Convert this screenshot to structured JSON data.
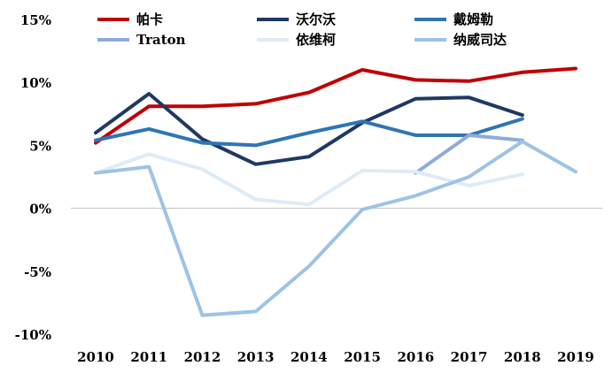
{
  "chart_data": {
    "type": "line",
    "title": "",
    "xlabel": "",
    "ylabel": "",
    "x": [
      "2010",
      "2011",
      "2012",
      "2013",
      "2014",
      "2015",
      "2016",
      "2017",
      "2018",
      "2019"
    ],
    "ylim": [
      -10,
      15
    ],
    "yticks": [
      15,
      10,
      5,
      0,
      -5,
      -10
    ],
    "ytick_labels": [
      "15%",
      "10%",
      "5%",
      "0%",
      "-5%",
      "-10%"
    ],
    "grid": false,
    "legend": "top",
    "series": [
      {
        "name": "帕卡",
        "color": "#C00000",
        "values": [
          5.2,
          8.1,
          8.1,
          8.3,
          9.2,
          11.0,
          10.2,
          10.1,
          10.8,
          11.1
        ]
      },
      {
        "name": "沃尔沃",
        "color": "#1F3864",
        "values": [
          6.0,
          9.1,
          5.5,
          3.5,
          4.1,
          6.8,
          8.7,
          8.8,
          7.4,
          null
        ]
      },
      {
        "name": "戴姆勒",
        "color": "#2E75B6",
        "values": [
          5.4,
          6.3,
          5.2,
          5.0,
          6.0,
          6.9,
          5.8,
          5.8,
          7.1,
          null
        ]
      },
      {
        "name": "Traton",
        "color": "#8FAADC",
        "values": [
          null,
          null,
          null,
          null,
          null,
          null,
          2.8,
          5.8,
          5.4,
          null
        ]
      },
      {
        "name": "依维柯",
        "color": "#DEEBF7",
        "values": [
          2.8,
          4.3,
          3.1,
          0.7,
          0.3,
          3.0,
          2.9,
          1.8,
          2.7,
          null
        ]
      },
      {
        "name": "纳威司达",
        "color": "#9DC3E6",
        "values": [
          2.8,
          3.3,
          -8.5,
          -8.2,
          -4.6,
          -0.1,
          1.0,
          2.5,
          5.3,
          2.9
        ]
      }
    ]
  }
}
